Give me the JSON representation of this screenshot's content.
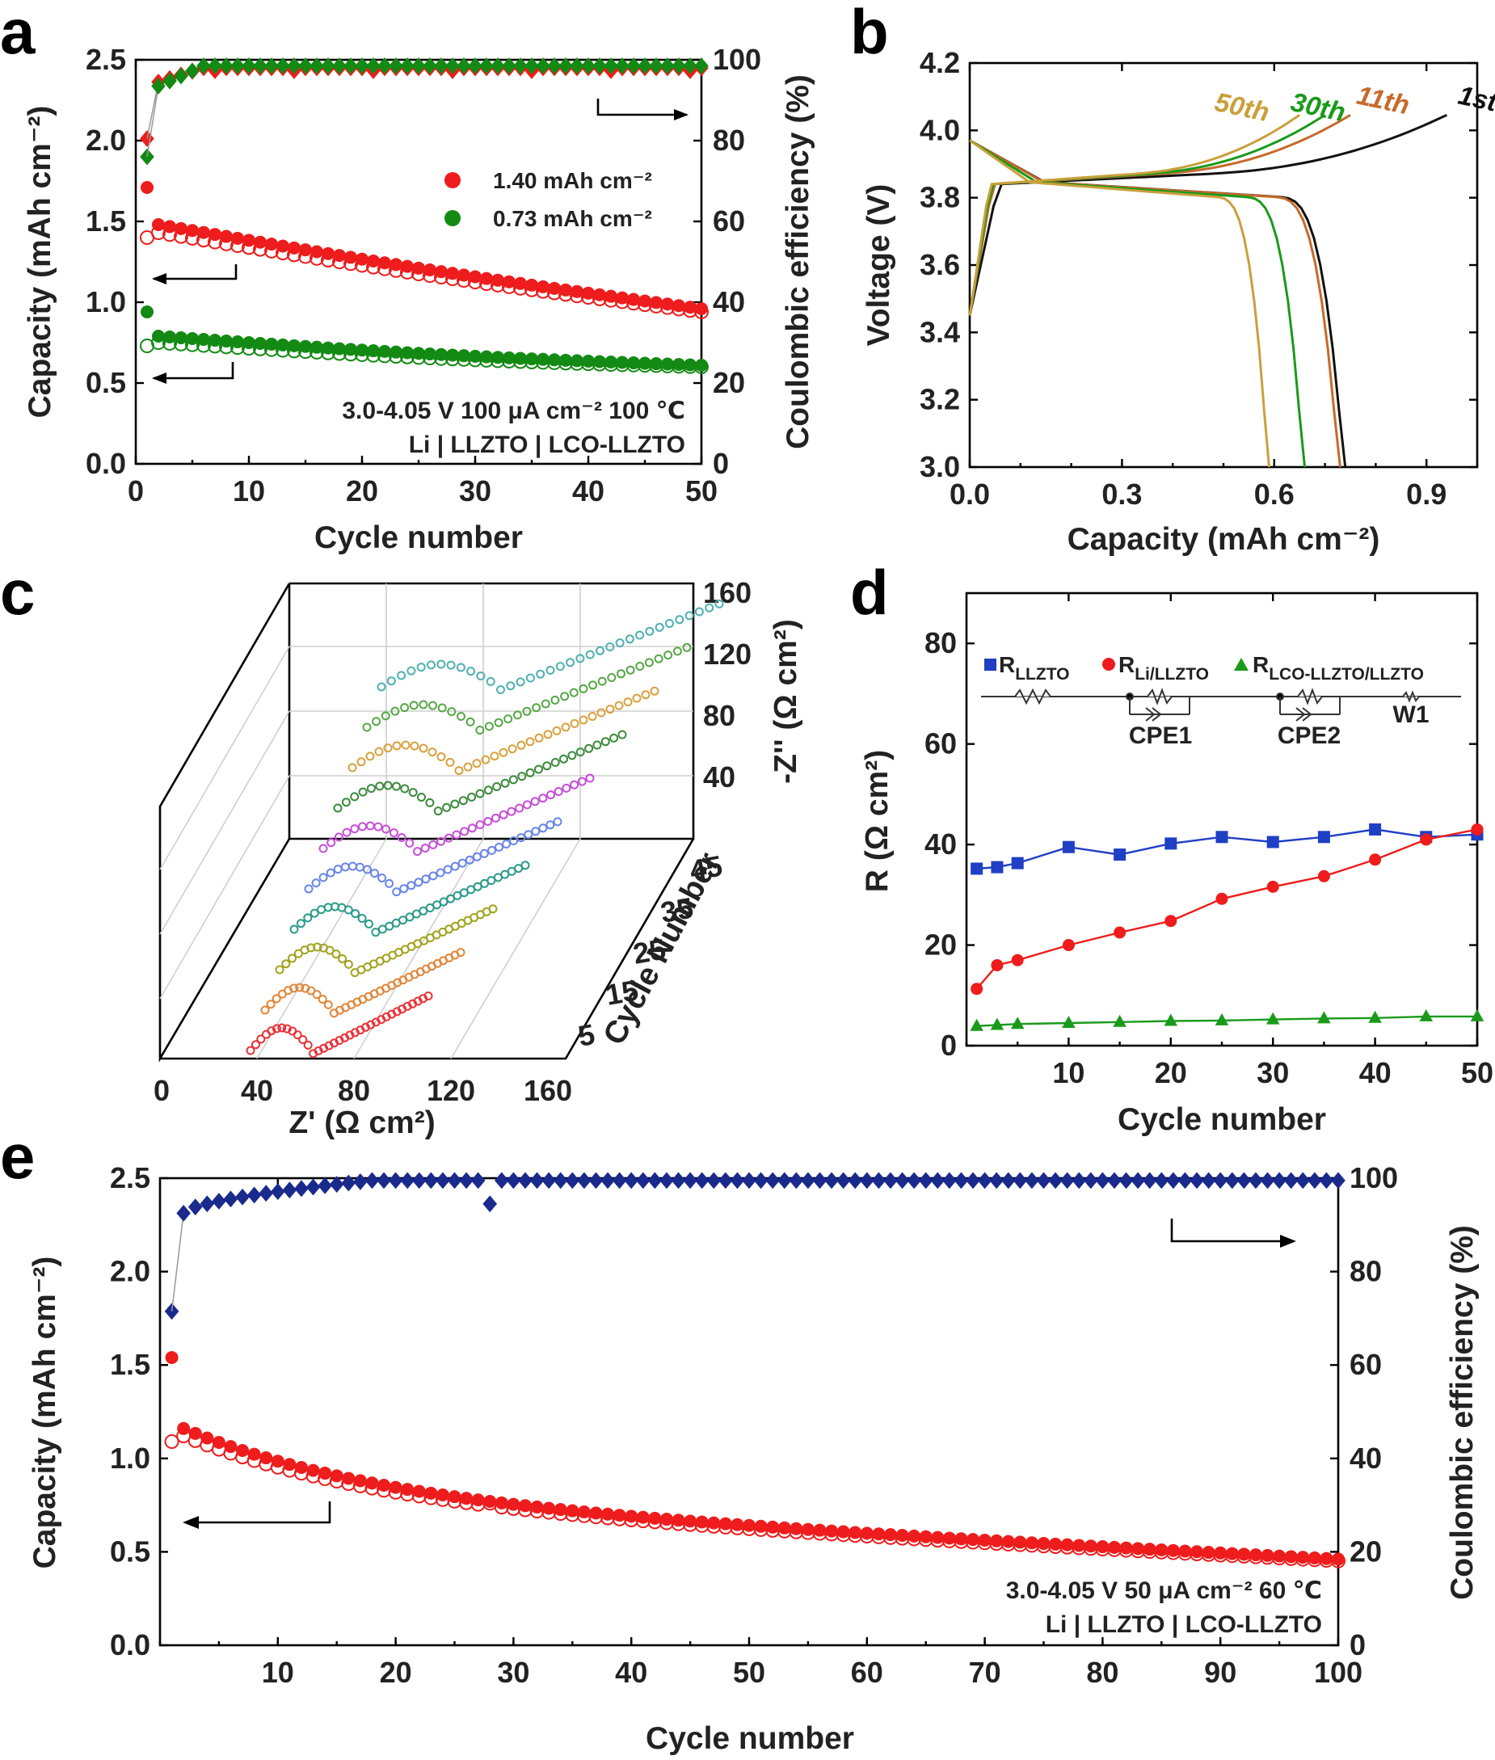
{
  "chart_data": [
    {
      "panel": "a",
      "type": "scatter",
      "xlabel": "Cycle number",
      "ylabel": "Capacity (mAh cm⁻²)",
      "y2label": "Coulombic efficiency (%)",
      "xlim": [
        0,
        50
      ],
      "xticks": [
        0,
        10,
        20,
        30,
        40,
        50
      ],
      "ylim": [
        0,
        2.5
      ],
      "yticks": [
        "0.0",
        "0.5",
        "1.0",
        "1.5",
        "2.0",
        "2.5"
      ],
      "y2lim": [
        0,
        100
      ],
      "y2ticks": [
        0,
        20,
        40,
        60,
        80,
        100
      ],
      "annotation": [
        "3.0-4.05 V  100 μA cm⁻²  100 ℃",
        "Li | LLZTO | LCO-LLZTO"
      ],
      "series": [
        {
          "name": "1.40 mAh cm⁻²",
          "color": "#ee1c1c",
          "marker": "circle",
          "role": "discharge",
          "first": 1.71,
          "start": 1.48,
          "end": 0.96
        },
        {
          "name": "",
          "color": "#ee1c1c",
          "marker": "circle-open",
          "role": "charge",
          "first": 1.4,
          "start": 1.43,
          "end": 0.94
        },
        {
          "name": "0.73 mAh cm⁻²",
          "color": "#138a13",
          "marker": "circle",
          "role": "discharge",
          "first": 0.94,
          "start": 0.79,
          "end": 0.61
        },
        {
          "name": "",
          "color": "#138a13",
          "marker": "circle-open",
          "role": "charge",
          "first": 0.73,
          "start": 0.75,
          "end": 0.6
        },
        {
          "name": "",
          "color": "#ee1c1c",
          "marker": "diamond",
          "role": "coulombic efficiency",
          "axis": "y2",
          "first": 80.5,
          "second": 94.5,
          "end": 98
        },
        {
          "name": "",
          "color": "#138a13",
          "marker": "diamond",
          "role": "coulombic efficiency",
          "axis": "y2",
          "first": 76,
          "second": 93.5,
          "end": 98.5
        }
      ]
    },
    {
      "panel": "b",
      "type": "line",
      "xlabel": "Capacity (mAh cm⁻²)",
      "ylabel": "Voltage (V)",
      "xlim": [
        0,
        1.0
      ],
      "xticks": [
        "0.0",
        "0.3",
        "0.6",
        "0.9"
      ],
      "ylim": [
        3.0,
        4.2
      ],
      "yticks": [
        "3.0",
        "3.2",
        "3.4",
        "3.6",
        "3.8",
        "4.0",
        "4.2"
      ],
      "series": [
        {
          "name": "1st",
          "color": "#111111",
          "charge_end": 0.94,
          "discharge_end": 0.74,
          "label_pos": [
            0.96,
            4.08
          ]
        },
        {
          "name": "11th",
          "color": "#c8692a",
          "charge_end": 0.75,
          "discharge_end": 0.73,
          "label_pos": [
            0.76,
            4.08
          ]
        },
        {
          "name": "30th",
          "color": "#1a9a1a",
          "charge_end": 0.7,
          "discharge_end": 0.66,
          "label_pos": [
            0.63,
            4.06
          ]
        },
        {
          "name": "50th",
          "color": "#c9a03c",
          "charge_end": 0.65,
          "discharge_end": 0.59,
          "label_pos": [
            0.48,
            4.06
          ]
        }
      ]
    },
    {
      "panel": "c",
      "type": "scatter",
      "xlabel": "Z' (Ω cm²)",
      "ylabel": "-Z'' (Ω cm²)",
      "zlabel": "Cycle Number",
      "xticks": [
        0,
        40,
        80,
        120,
        160
      ],
      "yticks": [
        40,
        80,
        120,
        160
      ],
      "zticks": [
        5,
        15,
        25,
        35,
        45
      ],
      "series": [
        {
          "name": "1",
          "color": "#e8333a",
          "x_start": 40,
          "x_end": 92
        },
        {
          "name": "5",
          "color": "#e0873a",
          "x_start": 42,
          "x_end": 102
        },
        {
          "name": "10",
          "color": "#a1a31c",
          "x_start": 42,
          "x_end": 112
        },
        {
          "name": "15",
          "color": "#2a9a8a",
          "x_start": 43,
          "x_end": 118
        },
        {
          "name": "20",
          "color": "#6a86e6",
          "x_start": 44,
          "x_end": 124
        },
        {
          "name": "25",
          "color": "#c64fd6",
          "x_start": 45,
          "x_end": 130
        },
        {
          "name": "30",
          "color": "#3b8a3b",
          "x_start": 45,
          "x_end": 134
        },
        {
          "name": "35",
          "color": "#d7a13d",
          "x_start": 46,
          "x_end": 140
        },
        {
          "name": "40",
          "color": "#56a846",
          "x_start": 46,
          "x_end": 146
        },
        {
          "name": "45",
          "color": "#4fb0b0",
          "x_start": 47,
          "x_end": 152
        }
      ]
    },
    {
      "panel": "d",
      "type": "line",
      "xlabel": "Cycle number",
      "ylabel": "R (Ω cm²)",
      "xlim": [
        0,
        50
      ],
      "xticks": [
        10,
        20,
        30,
        40,
        50
      ],
      "ylim": [
        0,
        90
      ],
      "yticks": [
        0,
        20,
        40,
        60,
        80
      ],
      "circuit_labels": [
        "CPE1",
        "CPE2",
        "W1"
      ],
      "x": [
        1,
        3,
        5,
        10,
        15,
        20,
        25,
        30,
        35,
        40,
        45,
        50
      ],
      "series": [
        {
          "name": "R",
          "sub": "LLZTO",
          "color": "#1f3fc4",
          "marker": "square",
          "values": [
            35.2,
            35.5,
            36.3,
            39.5,
            38.0,
            40.2,
            41.5,
            40.5,
            41.5,
            43.0,
            41.5,
            42.0
          ]
        },
        {
          "name": "R",
          "sub": "Li/LLZTO",
          "color": "#ee1c1c",
          "marker": "circle",
          "values": [
            11.3,
            16.0,
            17.0,
            20.0,
            22.5,
            24.8,
            29.2,
            31.6,
            33.7,
            37.0,
            41.0,
            43.0
          ]
        },
        {
          "name": "R",
          "sub": "LCO-LLZTO/LLZTO",
          "color": "#1a9a1a",
          "marker": "triangle",
          "values": [
            3.9,
            4.1,
            4.3,
            4.5,
            4.7,
            4.9,
            5.0,
            5.2,
            5.4,
            5.5,
            5.8,
            5.8
          ]
        }
      ]
    },
    {
      "panel": "e",
      "type": "scatter",
      "xlabel": "Cycle number",
      "ylabel": "Capacity (mAh cm⁻²)",
      "y2label": "Coulombic efficiency (%)",
      "xlim": [
        0,
        100
      ],
      "xticks": [
        10,
        20,
        30,
        40,
        50,
        60,
        70,
        80,
        90,
        100
      ],
      "ylim": [
        0,
        2.5
      ],
      "yticks": [
        "0.0",
        "0.5",
        "1.0",
        "1.5",
        "2.0",
        "2.5"
      ],
      "y2lim": [
        0,
        100
      ],
      "y2ticks": [
        0,
        20,
        40,
        60,
        80,
        100
      ],
      "annotation": [
        "3.0-4.05 V  50 μA cm⁻²  60 ℃",
        "Li | LLZTO | LCO-LLZTO"
      ],
      "series": [
        {
          "name": "",
          "color": "#ee1c1c",
          "marker": "circle",
          "role": "discharge",
          "first": 1.54,
          "start": 1.16,
          "end": 0.46
        },
        {
          "name": "",
          "color": "#ee1c1c",
          "marker": "circle-open",
          "role": "charge",
          "first": 1.09,
          "start": 1.12,
          "end": 0.45,
          "outlier": [
            28,
            0.76
          ]
        },
        {
          "name": "",
          "color": "#1a2a8c",
          "marker": "diamond",
          "role": "coulombic efficiency",
          "axis": "y2",
          "first": 71.5,
          "second": 92.5,
          "end": 99.5,
          "outlier": [
            28,
            94.5
          ]
        }
      ]
    }
  ]
}
